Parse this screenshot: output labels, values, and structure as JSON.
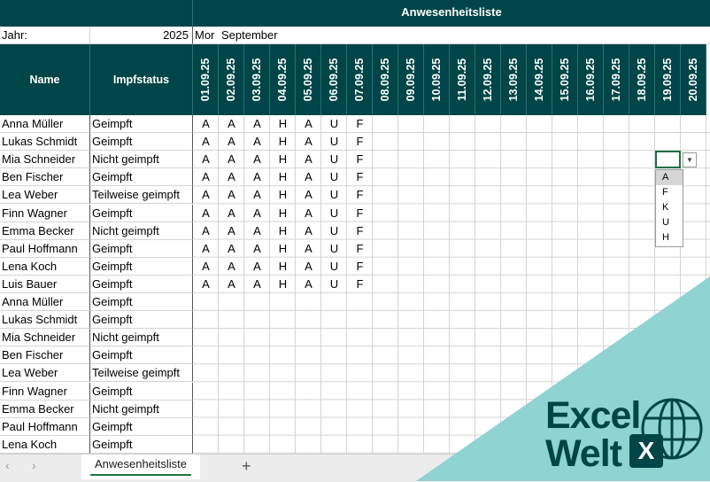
{
  "sheet": {
    "title": "Anwesenheitsliste",
    "year_label": "Jahr:",
    "year_value": "2025",
    "month_prefix": "Mor",
    "month_value": "September",
    "col_name": "Name",
    "col_vaccination": "Impfstatus",
    "dates": [
      "01.09.25",
      "02.09.25",
      "03.09.25",
      "04.09.25",
      "05.09.25",
      "06.09.25",
      "07.09.25",
      "08.09.25",
      "09.09.25",
      "10.09.25",
      "11.09.25",
      "12.09.25",
      "13.09.25",
      "14.09.25",
      "15.09.25",
      "16.09.25",
      "17.09.25",
      "18.09.25",
      "19.09.25",
      "20.09.25"
    ],
    "rows": [
      {
        "name": "Anna Müller",
        "vaccination": "Geimpft",
        "codes": [
          "A",
          "A",
          "A",
          "H",
          "A",
          "U",
          "F"
        ]
      },
      {
        "name": "Lukas Schmidt",
        "vaccination": "Geimpft",
        "codes": [
          "A",
          "A",
          "A",
          "H",
          "A",
          "U",
          "F"
        ]
      },
      {
        "name": "Mia Schneider",
        "vaccination": "Nicht geimpft",
        "codes": [
          "A",
          "A",
          "A",
          "H",
          "A",
          "U",
          "F"
        ]
      },
      {
        "name": "Ben Fischer",
        "vaccination": "Geimpft",
        "codes": [
          "A",
          "A",
          "A",
          "H",
          "A",
          "U",
          "F"
        ]
      },
      {
        "name": "Lea Weber",
        "vaccination": "Teilweise geimpft",
        "codes": [
          "A",
          "A",
          "A",
          "H",
          "A",
          "U",
          "F"
        ]
      },
      {
        "name": "Finn Wagner",
        "vaccination": "Geimpft",
        "codes": [
          "A",
          "A",
          "A",
          "H",
          "A",
          "U",
          "F"
        ]
      },
      {
        "name": "Emma Becker",
        "vaccination": "Nicht geimpft",
        "codes": [
          "A",
          "A",
          "A",
          "H",
          "A",
          "U",
          "F"
        ]
      },
      {
        "name": "Paul Hoffmann",
        "vaccination": "Geimpft",
        "codes": [
          "A",
          "A",
          "A",
          "H",
          "A",
          "U",
          "F"
        ]
      },
      {
        "name": "Lena Koch",
        "vaccination": "Geimpft",
        "codes": [
          "A",
          "A",
          "A",
          "H",
          "A",
          "U",
          "F"
        ]
      },
      {
        "name": "Luis Bauer",
        "vaccination": "Geimpft",
        "codes": [
          "A",
          "A",
          "A",
          "H",
          "A",
          "U",
          "F"
        ]
      },
      {
        "name": "Anna Müller",
        "vaccination": "Geimpft",
        "codes": []
      },
      {
        "name": "Lukas Schmidt",
        "vaccination": "Geimpft",
        "codes": []
      },
      {
        "name": "Mia Schneider",
        "vaccination": "Nicht geimpft",
        "codes": []
      },
      {
        "name": "Ben Fischer",
        "vaccination": "Geimpft",
        "codes": []
      },
      {
        "name": "Lea Weber",
        "vaccination": "Teilweise geimpft",
        "codes": []
      },
      {
        "name": "Finn Wagner",
        "vaccination": "Geimpft",
        "codes": []
      },
      {
        "name": "Emma Becker",
        "vaccination": "Nicht geimpft",
        "codes": []
      },
      {
        "name": "Paul Hoffmann",
        "vaccination": "Geimpft",
        "codes": []
      },
      {
        "name": "Lena Koch",
        "vaccination": "Geimpft",
        "codes": []
      }
    ]
  },
  "dropdown": {
    "options": [
      "A",
      "F",
      "K",
      "U",
      "H"
    ],
    "highlighted": "A"
  },
  "tabs": {
    "active": "Anwesenheitsliste",
    "add_label": "+",
    "prev_icon": "‹",
    "next_icon": "›"
  },
  "brand": {
    "line1": "Excel",
    "line2": "Welt",
    "badge": "X"
  },
  "colors": {
    "header_bg": "#004547",
    "accent_teal": "#8fd3d2",
    "excel_green": "#217346"
  }
}
